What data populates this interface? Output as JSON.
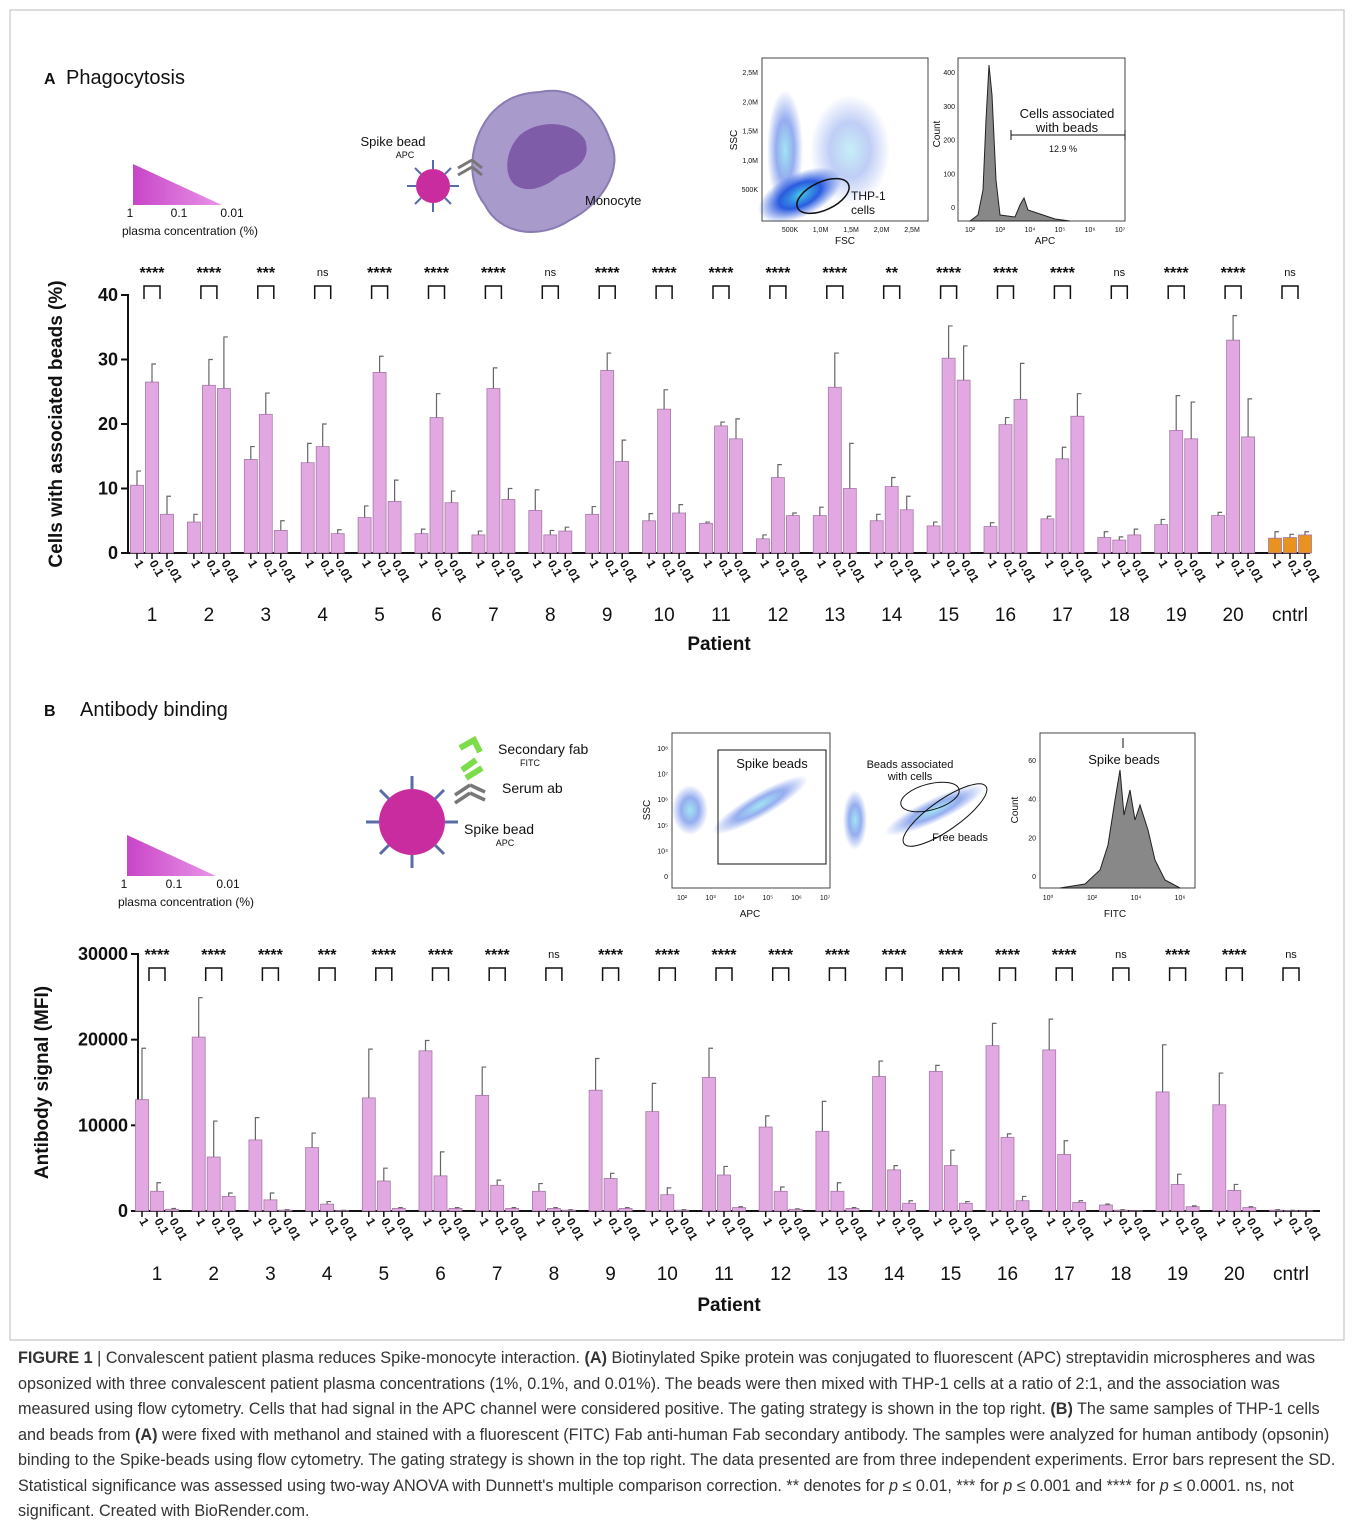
{
  "chart_data": [
    {
      "type": "bar",
      "y_label": "Cells with associated beads (%)",
      "x_label": "Patient",
      "categories": [
        "1",
        "2",
        "3",
        "4",
        "5",
        "6",
        "7",
        "8",
        "9",
        "10",
        "11",
        "12",
        "13",
        "14",
        "15",
        "16",
        "17",
        "18",
        "19",
        "20",
        "cntrl"
      ],
      "significance": [
        "****",
        "****",
        "***",
        "ns",
        "****",
        "****",
        "****",
        "ns",
        "****",
        "****",
        "****",
        "****",
        "****",
        "**",
        "****",
        "****",
        "****",
        "ns",
        "****",
        "****",
        "ns"
      ],
      "color": "#e2a8e2",
      "category_colors": [
        "#e2a8e2",
        "#e2a8e2",
        "#e2a8e2",
        "#e2a8e2",
        "#e2a8e2",
        "#e2a8e2",
        "#e2a8e2",
        "#e2a8e2",
        "#e2a8e2",
        "#e2a8e2",
        "#e2a8e2",
        "#e2a8e2",
        "#e2a8e2",
        "#e2a8e2",
        "#e2a8e2",
        "#e2a8e2",
        "#e2a8e2",
        "#e2a8e2",
        "#e2a8e2",
        "#e2a8e2",
        "#e8931f"
      ],
      "series": [
        {
          "name": "1",
          "values": [
            10.5,
            4.8,
            14.5,
            14,
            5.5,
            3,
            2.8,
            6.6,
            6,
            5,
            4.6,
            2.2,
            5.8,
            5,
            4.2,
            4.1,
            5.3,
            2.4,
            4.4,
            5.8,
            2.3
          ],
          "errors": [
            2.2,
            1.2,
            2,
            3,
            1.8,
            0.7,
            0.6,
            3.2,
            1.2,
            1.1,
            0.2,
            0.6,
            1.3,
            1,
            0.6,
            0.6,
            0.4,
            0.9,
            0.8,
            0.5,
            1
          ]
        },
        {
          "name": "0.1",
          "values": [
            26.5,
            26,
            21.5,
            16.5,
            28,
            21,
            25.5,
            2.8,
            28.3,
            22.3,
            19.7,
            11.7,
            25.7,
            10.3,
            30.2,
            19.9,
            14.6,
            2,
            19,
            33,
            2.4
          ],
          "errors": [
            2.8,
            4,
            3.3,
            3.5,
            2.5,
            3.7,
            3.2,
            0.7,
            2.7,
            3,
            0.6,
            2,
            5.3,
            1.4,
            5,
            1.1,
            1.8,
            0.5,
            5.4,
            3.8,
            0.5
          ]
        },
        {
          "name": "0.01",
          "values": [
            6,
            25.5,
            3.5,
            3,
            8,
            7.8,
            8.3,
            3.4,
            14.2,
            6.2,
            17.7,
            5.8,
            10,
            6.7,
            26.8,
            23.8,
            21.2,
            2.8,
            17.7,
            18,
            2.8
          ],
          "errors": [
            2.8,
            8,
            1.5,
            0.6,
            3.3,
            1.8,
            1.7,
            0.6,
            3.3,
            1.3,
            3.1,
            0.4,
            7,
            2.1,
            5.3,
            5.6,
            3.5,
            0.9,
            5.7,
            5.9,
            0.5
          ]
        }
      ],
      "ylim": [
        0,
        40
      ],
      "yticks": [
        0,
        10,
        20,
        30,
        40
      ]
    },
    {
      "type": "bar",
      "y_label": "Antibody signal (MFI)",
      "x_label": "Patient",
      "categories": [
        "1",
        "2",
        "3",
        "4",
        "5",
        "6",
        "7",
        "8",
        "9",
        "10",
        "11",
        "12",
        "13",
        "14",
        "15",
        "16",
        "17",
        "18",
        "19",
        "20",
        "cntrl"
      ],
      "significance": [
        "****",
        "****",
        "****",
        "***",
        "****",
        "****",
        "****",
        "ns",
        "****",
        "****",
        "****",
        "****",
        "****",
        "****",
        "****",
        "****",
        "****",
        "ns",
        "****",
        "****",
        "ns"
      ],
      "color": "#e2a8e2",
      "series": [
        {
          "name": "1",
          "values": [
            13000,
            20300,
            8300,
            7400,
            13200,
            18700,
            13500,
            2300,
            14100,
            11600,
            15600,
            9800,
            9300,
            15700,
            16300,
            19300,
            18800,
            700,
            13900,
            12400,
            100
          ],
          "errors": [
            6000,
            4600,
            2600,
            1700,
            5700,
            1200,
            3300,
            900,
            3700,
            3300,
            3400,
            1300,
            3500,
            1800,
            700,
            2600,
            3600,
            100,
            5500,
            3700,
            50
          ]
        },
        {
          "name": "0.1",
          "values": [
            2300,
            6300,
            1300,
            800,
            3500,
            4100,
            3000,
            300,
            3800,
            1900,
            4200,
            2300,
            2300,
            4800,
            5300,
            8600,
            6600,
            100,
            3100,
            2400,
            50
          ],
          "errors": [
            1000,
            4200,
            800,
            300,
            1500,
            2800,
            600,
            100,
            600,
            800,
            1000,
            500,
            1000,
            500,
            1800,
            400,
            1600,
            50,
            1200,
            700,
            20
          ]
        },
        {
          "name": "0.01",
          "values": [
            200,
            1700,
            100,
            50,
            300,
            300,
            300,
            100,
            300,
            100,
            400,
            200,
            300,
            900,
            900,
            1200,
            1000,
            30,
            500,
            400,
            20
          ],
          "errors": [
            100,
            400,
            50,
            30,
            100,
            100,
            100,
            50,
            100,
            50,
            100,
            50,
            100,
            300,
            200,
            500,
            200,
            20,
            100,
            100,
            10
          ]
        }
      ],
      "ylim": [
        0,
        30000
      ],
      "yticks": [
        0,
        10000,
        20000,
        30000
      ]
    }
  ],
  "panel_a": {
    "label": "A",
    "title": "Phagocytosis",
    "bead_label": "Spike bead",
    "bead_dye": "APC",
    "cell_label": "Monocyte",
    "gradient": {
      "high": "1",
      "mid": "0.1",
      "low": "0.01",
      "caption": "plasma concentration (%)"
    },
    "scatter": {
      "y_label": "SSC",
      "x_label": "FSC",
      "y_ticks": [
        "2,5M",
        "2,0M",
        "1,5M",
        "1,0M",
        "500K"
      ],
      "x_ticks": [
        "500K",
        "1,0M",
        "1,5M",
        "2,0M",
        "2,5M"
      ],
      "gate": [
        "THP-1",
        "cells"
      ]
    },
    "histogram": {
      "y_label": "Count",
      "x_label": "APC",
      "y_ticks": [
        "400",
        "300",
        "200",
        "100",
        "0"
      ],
      "x_ticks": [
        "10²",
        "10³",
        "10⁴",
        "10⁵",
        "10⁶",
        "10⁷"
      ],
      "gate": [
        "Cells associated",
        "with beads"
      ],
      "percent": "12.9 %"
    }
  },
  "panel_b": {
    "label": "B",
    "title": "Antibody binding",
    "secondary_label": "Secondary fab",
    "secondary_dye": "FITC",
    "serum_label": "Serum ab",
    "bead_label": "Spike bead",
    "bead_dye": "APC",
    "gradient": {
      "high": "1",
      "mid": "0.1",
      "low": "0.01",
      "caption": "plasma concentration (%)"
    },
    "scatter": {
      "y_label": "SSC",
      "x_label": "APC",
      "y_ticks": [
        "10⁸",
        "10⁷",
        "10⁶",
        "10⁵",
        "10⁴",
        "0"
      ],
      "x_ticks": [
        "10²",
        "10³",
        "10⁴",
        "10⁵",
        "10⁶",
        "10⁷"
      ],
      "gate": "Spike beads"
    },
    "beads": {
      "associated": [
        "Beads associated",
        "with cells"
      ],
      "free": "Free beads"
    },
    "histogram": {
      "y_label": "Count",
      "x_label": "FITC",
      "y_ticks": [
        "60",
        "40",
        "20",
        "0"
      ],
      "x_ticks": [
        "10⁰",
        "10²",
        "10⁴",
        "10⁶"
      ],
      "gate": "Spike beads"
    }
  },
  "caption": {
    "parts": [
      "FIGURE 1",
      " | Convalescent patient plasma reduces Spike-monocyte interaction. ",
      "(A)",
      " Biotinylated Spike protein was conjugated to fluorescent (APC) streptavidin microspheres and was opsonized with three convalescent patient plasma concentrations (1%, 0.1%, and 0.01%). The beads were then mixed with THP-1 cells at a ratio of 2:1, and the association was measured using flow cytometry. Cells that had signal in the APC channel were considered positive. The gating strategy is shown in the top right. ",
      "(B)",
      " The same samples of THP-1 cells and beads from ",
      "(A)",
      " were fixed with methanol and stained with a fluorescent (FITC) Fab anti-human Fab secondary antibody. The samples were analyzed for human antibody (opsonin) binding to the Spike-beads using flow cytometry. The gating strategy is shown in the top right. The data presented are from three independent experiments. Error bars represent the SD. Statistical significance was assessed using two-way ANOVA with Dunnett's multiple comparison correction. ** denotes for ",
      "p",
      " ≤ 0.01, *** for ",
      "p",
      " ≤ 0.001 and **** for ",
      "p",
      " ≤ 0.0001. ns, not significant. Created with BioRender.com."
    ]
  }
}
